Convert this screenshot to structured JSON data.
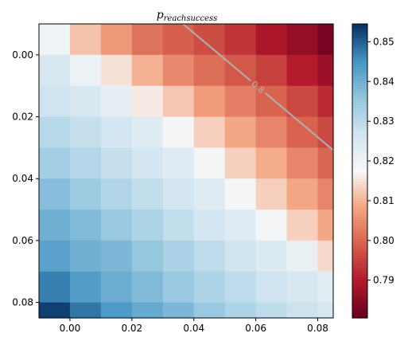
{
  "chart_data": {
    "type": "heatmap",
    "title": "p",
    "title_subscript": "reachsuccess",
    "xlabel": "",
    "ylabel": "",
    "x": [
      -0.005,
      0.005,
      0.015,
      0.025,
      0.035,
      0.045,
      0.055,
      0.065,
      0.075,
      0.085
    ],
    "y": [
      -0.005,
      0.005,
      0.015,
      0.025,
      0.035,
      0.045,
      0.055,
      0.065,
      0.075,
      0.085
    ],
    "xlim": [
      -0.01,
      0.085
    ],
    "ylim": [
      -0.01,
      0.085
    ],
    "y_inverted": true,
    "x_ticks": [
      "0.00",
      "0.02",
      "0.04",
      "0.06",
      "0.08"
    ],
    "y_ticks": [
      "0.00",
      "0.02",
      "0.04",
      "0.06",
      "0.08"
    ],
    "values": [
      [
        0.8195,
        0.8115,
        0.8065,
        0.8015,
        0.799,
        0.7965,
        0.7935,
        0.789,
        0.786,
        0.7825
      ],
      [
        0.825,
        0.8205,
        0.815,
        0.8095,
        0.8045,
        0.801,
        0.798,
        0.795,
        0.79,
        0.787
      ],
      [
        0.827,
        0.825,
        0.8215,
        0.816,
        0.812,
        0.807,
        0.803,
        0.7995,
        0.796,
        0.792
      ],
      [
        0.8305,
        0.8285,
        0.826,
        0.823,
        0.8185,
        0.813,
        0.8085,
        0.804,
        0.7995,
        0.796
      ],
      [
        0.8335,
        0.831,
        0.8285,
        0.826,
        0.823,
        0.8185,
        0.813,
        0.809,
        0.804,
        0.8
      ],
      [
        0.8375,
        0.8345,
        0.8315,
        0.829,
        0.8265,
        0.8235,
        0.8185,
        0.813,
        0.8085,
        0.804
      ],
      [
        0.84,
        0.838,
        0.835,
        0.832,
        0.829,
        0.826,
        0.823,
        0.8185,
        0.813,
        0.8085
      ],
      [
        0.8425,
        0.84,
        0.8385,
        0.8355,
        0.8325,
        0.8295,
        0.827,
        0.824,
        0.821,
        0.814
      ],
      [
        0.847,
        0.8435,
        0.8405,
        0.838,
        0.835,
        0.832,
        0.8295,
        0.827,
        0.825,
        0.8225
      ],
      [
        0.853,
        0.848,
        0.844,
        0.841,
        0.8385,
        0.835,
        0.832,
        0.8295,
        0.8275,
        0.8255
      ]
    ],
    "colormap": "RdBu",
    "color_range": [
      0.7805,
      0.8545
    ],
    "colorbar_ticks": [
      0.79,
      0.8,
      0.81,
      0.82,
      0.83,
      0.84,
      0.85
    ],
    "colorbar_tick_labels": [
      "0.79",
      "0.80",
      "0.81",
      "0.82",
      "0.83",
      "0.84",
      "0.85"
    ],
    "contours": [
      {
        "level_label": "0.8",
        "color": "#b0b0b0",
        "points": [
          [
            0.0365,
            -0.01
          ],
          [
            0.085,
            0.0308
          ]
        ]
      }
    ],
    "grid": false,
    "legend": "none"
  }
}
